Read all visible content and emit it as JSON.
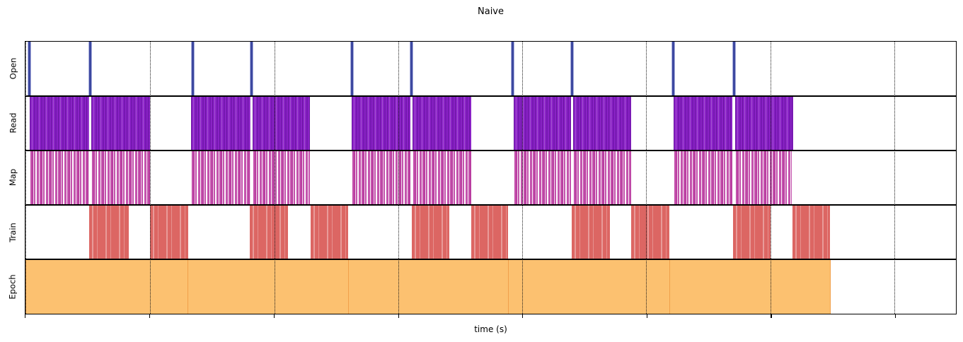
{
  "title": "Naive",
  "xlabel": "time (s)",
  "chart_data": {
    "type": "bar",
    "subtype": "gantt-broken-barh-timeline",
    "title": "Naive",
    "xlabel": "time (s)",
    "ylabel": "",
    "description": "Horizontal event-timeline (broken bar) chart with 5 stacked tracks (top to bottom: Open, Read, Map, Train, Epoch). Five repeating epoch groups. Positions given as percent of x-axis width; x tick labels are not shown on the chart.",
    "legend": "none",
    "grid": "dotted vertical gridlines at each x tick, drawn over the bars",
    "x_axis": {
      "label": "time (s)",
      "tick_labels_visible": false,
      "tick_labels": [],
      "tick_positions_pct": [
        0,
        13.37,
        26.74,
        40.07,
        53.4,
        66.73,
        80.06,
        93.39
      ]
    },
    "colors": {
      "open": "#3d48a0",
      "open_halo": "#aab0dd",
      "read": "#8a22c6",
      "map": "#c453ad",
      "train": "#dc6663",
      "epoch": "#fcc170",
      "epoch_edge": "#f0a04b",
      "grid": "#1a1a1a",
      "axes": "#000000"
    },
    "rows": [
      {
        "label": "Open",
        "kind": "events",
        "color": "#3d48a0",
        "events_pct": [
          0.42,
          6.99,
          17.96,
          24.31,
          35.09,
          41.51,
          52.33,
          58.75,
          69.65,
          76.15
        ]
      },
      {
        "label": "Read",
        "kind": "read",
        "color": "#8a22c6",
        "segments_pct": [
          [
            0.42,
            6.87
          ],
          [
            7.1,
            13.41
          ],
          [
            17.81,
            24.19
          ],
          [
            24.42,
            30.57
          ],
          [
            35.05,
            41.36
          ],
          [
            41.62,
            47.89
          ],
          [
            52.45,
            58.6
          ],
          [
            58.87,
            65.13
          ],
          [
            69.62,
            76.0
          ],
          [
            76.26,
            82.53
          ]
        ]
      },
      {
        "label": "Map",
        "kind": "map",
        "color": "#c453ad",
        "segments_pct": [
          [
            0.42,
            6.87
          ],
          [
            7.1,
            13.41
          ],
          [
            17.81,
            24.19
          ],
          [
            24.42,
            30.57
          ],
          [
            35.05,
            41.36
          ],
          [
            41.62,
            47.89
          ],
          [
            52.45,
            58.6
          ],
          [
            58.87,
            65.13
          ],
          [
            69.62,
            76.0
          ],
          [
            76.26,
            82.37
          ]
        ]
      },
      {
        "label": "Train",
        "kind": "train",
        "color": "#dc6663",
        "segments_pct": [
          [
            6.87,
            11.13
          ],
          [
            13.41,
            17.47
          ],
          [
            24.12,
            28.22
          ],
          [
            30.65,
            34.71
          ],
          [
            41.51,
            45.54
          ],
          [
            47.89,
            51.88
          ],
          [
            58.68,
            62.85
          ],
          [
            65.13,
            69.24
          ],
          [
            76.07,
            80.06
          ],
          [
            82.45,
            86.48
          ]
        ]
      },
      {
        "label": "Epoch",
        "kind": "epoch",
        "color": "#fcc170",
        "segments_pct": [
          [
            0.0,
            17.51
          ],
          [
            17.51,
            34.75
          ],
          [
            34.75,
            51.95
          ],
          [
            51.95,
            69.24
          ],
          [
            69.24,
            86.51
          ]
        ]
      }
    ]
  }
}
